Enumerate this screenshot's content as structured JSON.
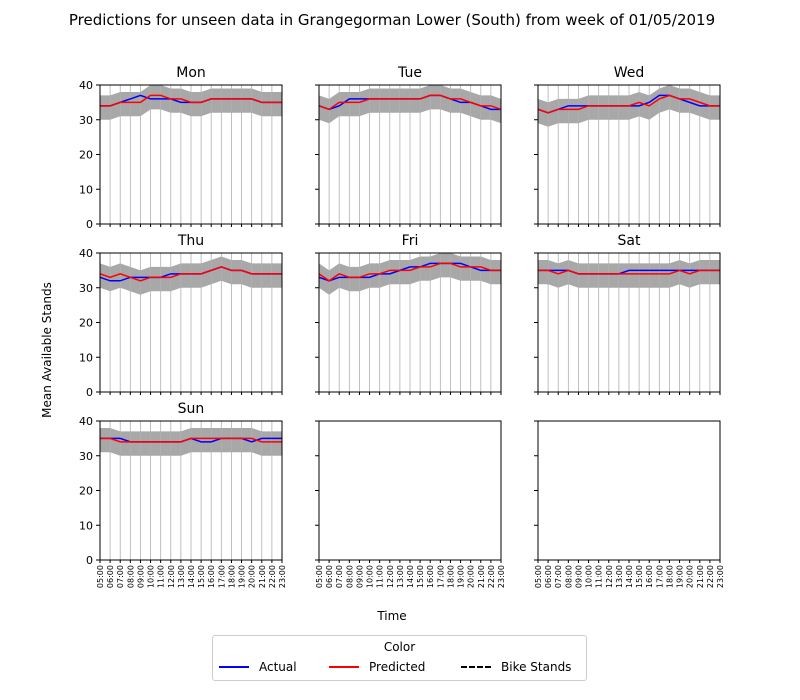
{
  "chart_data": {
    "type": "line",
    "title": "Predictions for unseen data in Grangegorman Lower (South) from week of 01/05/2019",
    "xlabel": "Time",
    "ylabel": "Mean Available Stands",
    "ylim": [
      0,
      40
    ],
    "yticks": [
      0,
      10,
      20,
      30,
      40
    ],
    "x": [
      "05:00",
      "06:00",
      "07:00",
      "08:00",
      "09:00",
      "10:00",
      "11:00",
      "12:00",
      "13:00",
      "14:00",
      "15:00",
      "16:00",
      "17:00",
      "18:00",
      "19:00",
      "20:00",
      "21:00",
      "22:00",
      "23:00"
    ],
    "grid": true,
    "legend": {
      "title": "Color",
      "position": "bottom-center",
      "entries": [
        {
          "label": "Actual",
          "color": "#0000ff",
          "style": "solid"
        },
        {
          "label": "Predicted",
          "color": "#ff0000",
          "style": "solid"
        },
        {
          "label": "Bike Stands",
          "color": "#000000",
          "style": "dashdot"
        }
      ]
    },
    "band_color": "#999999",
    "panels": [
      {
        "name": "Mon",
        "actual": [
          34,
          34,
          35,
          36,
          37,
          36,
          36,
          36,
          35,
          35,
          35,
          36,
          36,
          36,
          36,
          36,
          35,
          35,
          35
        ],
        "predicted": [
          34,
          34,
          35,
          35,
          35,
          37,
          37,
          36,
          36,
          35,
          35,
          36,
          36,
          36,
          36,
          36,
          35,
          35,
          35
        ],
        "band_low": [
          30,
          30,
          31,
          31,
          31,
          33,
          33,
          32,
          32,
          31,
          31,
          32,
          32,
          32,
          32,
          32,
          31,
          31,
          31
        ],
        "band_high": [
          37,
          37,
          38,
          38,
          38,
          40,
          40,
          39,
          39,
          38,
          38,
          39,
          39,
          39,
          39,
          39,
          38,
          38,
          38
        ]
      },
      {
        "name": "Tue",
        "actual": [
          34,
          33,
          34,
          36,
          36,
          36,
          36,
          36,
          36,
          36,
          36,
          37,
          37,
          36,
          35,
          35,
          34,
          33,
          33
        ],
        "predicted": [
          34,
          33,
          35,
          35,
          35,
          36,
          36,
          36,
          36,
          36,
          36,
          37,
          37,
          36,
          36,
          35,
          34,
          34,
          33
        ],
        "band_low": [
          30,
          29,
          31,
          31,
          31,
          32,
          32,
          32,
          32,
          32,
          32,
          33,
          33,
          32,
          32,
          31,
          30,
          30,
          29
        ],
        "band_high": [
          37,
          36,
          38,
          38,
          38,
          39,
          39,
          39,
          39,
          39,
          39,
          40,
          40,
          39,
          39,
          38,
          37,
          37,
          36
        ]
      },
      {
        "name": "Wed",
        "actual": [
          33,
          32,
          33,
          34,
          34,
          34,
          34,
          34,
          34,
          34,
          34,
          35,
          37,
          37,
          36,
          35,
          34,
          34,
          34
        ],
        "predicted": [
          33,
          32,
          33,
          33,
          33,
          34,
          34,
          34,
          34,
          34,
          35,
          34,
          36,
          37,
          36,
          36,
          35,
          34,
          34
        ],
        "band_low": [
          29,
          28,
          29,
          29,
          29,
          30,
          30,
          30,
          30,
          30,
          31,
          30,
          32,
          33,
          32,
          32,
          31,
          30,
          30
        ],
        "band_high": [
          36,
          35,
          36,
          36,
          36,
          37,
          37,
          37,
          37,
          37,
          38,
          37,
          39,
          40,
          39,
          39,
          38,
          37,
          37
        ]
      },
      {
        "name": "Thu",
        "actual": [
          33,
          32,
          32,
          33,
          33,
          33,
          33,
          34,
          34,
          34,
          34,
          35,
          36,
          35,
          35,
          34,
          34,
          34,
          34
        ],
        "predicted": [
          34,
          33,
          34,
          33,
          32,
          33,
          33,
          33,
          34,
          34,
          34,
          35,
          36,
          35,
          35,
          34,
          34,
          34,
          34
        ],
        "band_low": [
          30,
          29,
          30,
          29,
          28,
          29,
          29,
          29,
          30,
          30,
          30,
          31,
          32,
          31,
          31,
          30,
          30,
          30,
          30
        ],
        "band_high": [
          37,
          36,
          37,
          36,
          35,
          36,
          36,
          36,
          37,
          37,
          37,
          38,
          39,
          38,
          38,
          37,
          37,
          37,
          37
        ]
      },
      {
        "name": "Fri",
        "actual": [
          33,
          32,
          33,
          33,
          33,
          33,
          34,
          34,
          35,
          36,
          36,
          37,
          37,
          37,
          37,
          36,
          35,
          35,
          35
        ],
        "predicted": [
          34,
          32,
          34,
          33,
          33,
          34,
          34,
          35,
          35,
          35,
          36,
          36,
          37,
          37,
          36,
          36,
          36,
          35,
          35
        ],
        "band_low": [
          30,
          28,
          30,
          29,
          29,
          30,
          30,
          31,
          31,
          31,
          32,
          32,
          33,
          33,
          32,
          32,
          32,
          31,
          31
        ],
        "band_high": [
          37,
          35,
          37,
          36,
          36,
          37,
          37,
          38,
          38,
          38,
          39,
          39,
          40,
          40,
          39,
          39,
          39,
          38,
          38
        ]
      },
      {
        "name": "Sat",
        "actual": [
          35,
          35,
          35,
          35,
          34,
          34,
          34,
          34,
          34,
          35,
          35,
          35,
          35,
          35,
          35,
          35,
          35,
          35,
          35
        ],
        "predicted": [
          35,
          35,
          34,
          35,
          34,
          34,
          34,
          34,
          34,
          34,
          34,
          34,
          34,
          34,
          35,
          34,
          35,
          35,
          35
        ],
        "band_low": [
          31,
          31,
          30,
          31,
          30,
          30,
          30,
          30,
          30,
          30,
          30,
          30,
          30,
          30,
          31,
          30,
          31,
          31,
          31
        ],
        "band_high": [
          38,
          38,
          37,
          38,
          37,
          37,
          37,
          37,
          37,
          37,
          37,
          37,
          37,
          37,
          38,
          37,
          38,
          38,
          38
        ]
      },
      {
        "name": "Sun",
        "actual": [
          35,
          35,
          35,
          34,
          34,
          34,
          34,
          34,
          34,
          35,
          34,
          34,
          35,
          35,
          35,
          34,
          35,
          35,
          35
        ],
        "predicted": [
          35,
          35,
          34,
          34,
          34,
          34,
          34,
          34,
          34,
          35,
          35,
          35,
          35,
          35,
          35,
          35,
          34,
          34,
          34
        ],
        "band_low": [
          31,
          31,
          30,
          30,
          30,
          30,
          30,
          30,
          30,
          31,
          31,
          31,
          31,
          31,
          31,
          31,
          30,
          30,
          30
        ],
        "band_high": [
          38,
          38,
          37,
          37,
          37,
          37,
          37,
          37,
          37,
          38,
          38,
          38,
          38,
          38,
          38,
          38,
          37,
          37,
          37
        ]
      },
      {
        "name": "",
        "actual": [],
        "predicted": [],
        "band_low": [],
        "band_high": []
      },
      {
        "name": "",
        "actual": [],
        "predicted": [],
        "band_low": [],
        "band_high": []
      }
    ]
  }
}
